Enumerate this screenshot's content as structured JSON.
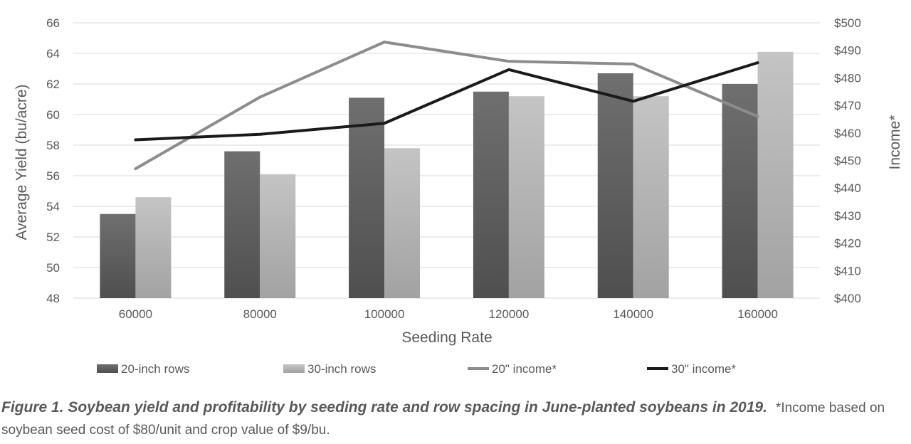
{
  "chart_data": {
    "type": "bar",
    "xlabel": "Seeding Rate",
    "ylabel": "Average Yield (bu/acre)",
    "y2label": "Income*",
    "categories": [
      "60000",
      "80000",
      "100000",
      "120000",
      "140000",
      "160000"
    ],
    "ylim": [
      48,
      66
    ],
    "yticks": [
      "48",
      "50",
      "52",
      "54",
      "56",
      "58",
      "60",
      "62",
      "64",
      "66"
    ],
    "y2lim": [
      400,
      500
    ],
    "y2ticks": [
      "$400",
      "$410",
      "$420",
      "$430",
      "$440",
      "$450",
      "$460",
      "$470",
      "$480",
      "$490",
      "$500"
    ],
    "grid": true,
    "legend_position": "bottom",
    "bar_series": [
      {
        "name": "20-inch rows",
        "values": [
          53.5,
          57.6,
          61.1,
          61.5,
          62.7,
          62.0
        ],
        "color": "#5f5f5f"
      },
      {
        "name": "30-inch rows",
        "values": [
          54.6,
          56.1,
          57.8,
          61.2,
          61.2,
          64.1
        ],
        "color": "#b3b3b3"
      }
    ],
    "line_series": [
      {
        "name": "20\" income*",
        "values": [
          447,
          473,
          493,
          486,
          485,
          466
        ],
        "color": "#8c8c8c",
        "axis": "right"
      },
      {
        "name": "30\" income*",
        "values": [
          457.5,
          459.5,
          463.5,
          483,
          471.5,
          485.5
        ],
        "color": "#1a1a1a",
        "axis": "right"
      }
    ]
  },
  "caption": {
    "title": "Figure 1. Soybean yield and profitability by seeding rate and row spacing in June-planted soybeans in 2019.",
    "note": "*Income based on soybean seed cost of $80/unit and crop value of $9/bu."
  }
}
